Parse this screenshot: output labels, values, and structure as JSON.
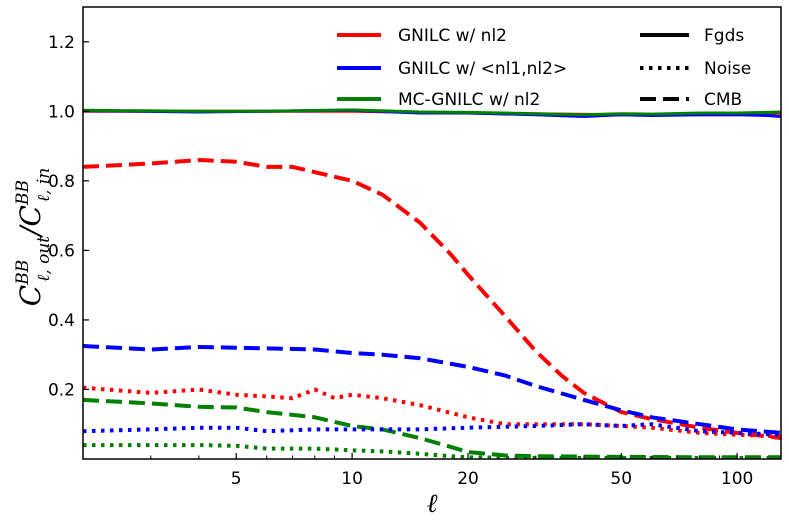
{
  "chart_data": {
    "type": "line",
    "x_scale": "log",
    "xlim": [
      2,
      130
    ],
    "ylim": [
      0,
      1.3
    ],
    "xlabel": "ℓ",
    "ylabel": "C^BB_ℓ,out / C^BB_ℓ,in",
    "xticks": [
      5,
      10,
      20,
      50,
      100
    ],
    "yticks": [
      0.2,
      0.4,
      0.6,
      0.8,
      1.0,
      1.2
    ],
    "grid": false,
    "legend_pipelines": [
      {
        "label": "GNILC w/ nl2",
        "color": "#ff0000"
      },
      {
        "label": "GNILC w/ <nl1,nl2>",
        "color": "#0000ff"
      },
      {
        "label": "MC-GNILC w/ nl2",
        "color": "#008000"
      }
    ],
    "legend_components": [
      {
        "label": "Fgds",
        "linestyle": "solid"
      },
      {
        "label": "Noise",
        "linestyle": "dotted"
      },
      {
        "label": "CMB",
        "linestyle": "dashed"
      }
    ],
    "series": [
      {
        "color": "#ff0000",
        "linestyle": "solid",
        "x": [
          2,
          5,
          10,
          20,
          50,
          100,
          130
        ],
        "y": [
          1.0,
          1.0,
          1.0,
          0.995,
          0.99,
          0.99,
          0.995
        ]
      },
      {
        "color": "#0000ff",
        "linestyle": "solid",
        "x": [
          2,
          4,
          6,
          10,
          15,
          20,
          30,
          40,
          50,
          60,
          80,
          100,
          120,
          130
        ],
        "y": [
          1.002,
          0.998,
          1.0,
          1.003,
          0.995,
          0.995,
          0.99,
          0.985,
          0.99,
          0.988,
          0.99,
          0.99,
          0.988,
          0.985
        ]
      },
      {
        "color": "#008000",
        "linestyle": "solid",
        "x": [
          2,
          4,
          6,
          10,
          15,
          20,
          30,
          40,
          50,
          60,
          80,
          100,
          120,
          130
        ],
        "y": [
          1.003,
          1.0,
          1.0,
          1.004,
          0.998,
          0.997,
          0.993,
          0.99,
          0.993,
          0.992,
          0.995,
          0.995,
          0.997,
          0.998
        ]
      },
      {
        "color": "#ff0000",
        "linestyle": "dashed",
        "x": [
          2,
          3,
          4,
          5,
          6,
          7,
          8,
          10,
          12,
          15,
          18,
          20,
          25,
          30,
          35,
          40,
          50,
          60,
          80,
          100,
          120,
          130
        ],
        "y": [
          0.84,
          0.85,
          0.86,
          0.855,
          0.84,
          0.84,
          0.825,
          0.8,
          0.76,
          0.68,
          0.59,
          0.53,
          0.41,
          0.31,
          0.24,
          0.19,
          0.135,
          0.115,
          0.09,
          0.075,
          0.065,
          0.06
        ]
      },
      {
        "color": "#0000ff",
        "linestyle": "dashed",
        "x": [
          2,
          3,
          4,
          5,
          6,
          8,
          10,
          12,
          15,
          20,
          25,
          30,
          40,
          50,
          60,
          80,
          100,
          130
        ],
        "y": [
          0.325,
          0.315,
          0.322,
          0.32,
          0.318,
          0.315,
          0.305,
          0.3,
          0.29,
          0.265,
          0.24,
          0.21,
          0.17,
          0.14,
          0.12,
          0.1,
          0.085,
          0.075
        ]
      },
      {
        "color": "#008000",
        "linestyle": "dashed",
        "x": [
          2,
          3,
          4,
          5,
          6,
          8,
          10,
          12,
          15,
          18,
          20,
          25,
          30,
          40,
          50,
          80,
          130
        ],
        "y": [
          0.17,
          0.16,
          0.15,
          0.148,
          0.135,
          0.12,
          0.095,
          0.085,
          0.06,
          0.035,
          0.02,
          0.01,
          0.008,
          0.007,
          0.006,
          0.005,
          0.005
        ]
      },
      {
        "color": "#ff0000",
        "linestyle": "dotted",
        "x": [
          2,
          3,
          4,
          5,
          6,
          7,
          8,
          9,
          10,
          12,
          15,
          20,
          25,
          30,
          40,
          50,
          60,
          80,
          100,
          130
        ],
        "y": [
          0.205,
          0.19,
          0.2,
          0.185,
          0.18,
          0.175,
          0.2,
          0.175,
          0.185,
          0.175,
          0.155,
          0.12,
          0.1,
          0.1,
          0.1,
          0.095,
          0.09,
          0.075,
          0.07,
          0.065
        ]
      },
      {
        "color": "#0000ff",
        "linestyle": "dotted",
        "x": [
          2,
          3,
          4,
          5,
          6,
          8,
          10,
          15,
          20,
          30,
          40,
          50,
          60,
          80,
          100,
          130
        ],
        "y": [
          0.08,
          0.085,
          0.09,
          0.09,
          0.08,
          0.085,
          0.085,
          0.085,
          0.09,
          0.095,
          0.1,
          0.095,
          0.1,
          0.08,
          0.075,
          0.07
        ]
      },
      {
        "color": "#008000",
        "linestyle": "dotted",
        "x": [
          2,
          3,
          4,
          5,
          6,
          8,
          10,
          12,
          15,
          18,
          20,
          30,
          50,
          80,
          130
        ],
        "y": [
          0.04,
          0.04,
          0.04,
          0.038,
          0.03,
          0.03,
          0.025,
          0.022,
          0.015,
          0.008,
          0.005,
          0.003,
          0.003,
          0.003,
          0.003
        ]
      }
    ]
  }
}
